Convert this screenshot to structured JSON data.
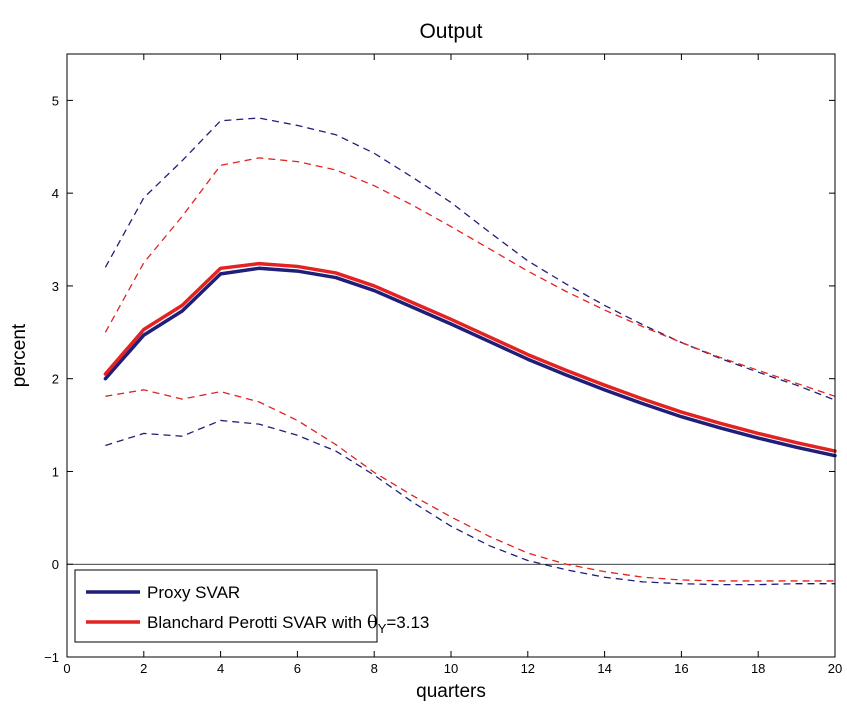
{
  "chart_data": {
    "type": "line",
    "title": "Output",
    "xlabel": "quarters",
    "ylabel": "percent",
    "xlim": [
      0,
      20
    ],
    "ylim": [
      -1,
      5.5
    ],
    "xticks": [
      0,
      2,
      4,
      6,
      8,
      10,
      12,
      14,
      16,
      18,
      20
    ],
    "yticks": [
      -1,
      0,
      1,
      2,
      3,
      4,
      5
    ],
    "grid": false,
    "zero_line": true,
    "legend": {
      "placement": "bottom-left",
      "entries": [
        {
          "series": "proxy_svar",
          "label": "Proxy SVAR"
        },
        {
          "series": "bp_svar",
          "label_prefix": "Blanchard Perotti SVAR with ",
          "theta_symbol": "θ",
          "theta_subscript": "Y",
          "theta_value": "=3.13"
        }
      ]
    },
    "x": [
      1,
      2,
      3,
      4,
      5,
      6,
      7,
      8,
      9,
      10,
      11,
      12,
      13,
      14,
      15,
      16,
      17,
      18,
      19,
      20
    ],
    "series": [
      {
        "id": "proxy_svar",
        "role": "point",
        "color": "#1f1f7a",
        "style": "solid",
        "values": [
          2.0,
          2.47,
          2.73,
          3.13,
          3.19,
          3.16,
          3.09,
          2.95,
          2.77,
          2.59,
          2.4,
          2.21,
          2.04,
          1.88,
          1.73,
          1.59,
          1.47,
          1.36,
          1.26,
          1.17
        ]
      },
      {
        "id": "bp_svar",
        "role": "point",
        "color": "#e32222",
        "style": "solid",
        "values": [
          2.05,
          2.53,
          2.79,
          3.19,
          3.24,
          3.21,
          3.14,
          3.0,
          2.82,
          2.64,
          2.45,
          2.26,
          2.09,
          1.93,
          1.78,
          1.64,
          1.52,
          1.41,
          1.31,
          1.22
        ]
      },
      {
        "id": "proxy_upper",
        "role": "band",
        "color": "#1f1f7a",
        "style": "dashed",
        "values": [
          3.2,
          3.95,
          4.35,
          4.78,
          4.81,
          4.73,
          4.63,
          4.43,
          4.17,
          3.9,
          3.58,
          3.27,
          3.02,
          2.79,
          2.58,
          2.39,
          2.22,
          2.07,
          1.93,
          1.77
        ]
      },
      {
        "id": "proxy_lower",
        "role": "band",
        "color": "#1f1f7a",
        "style": "dashed",
        "values": [
          1.28,
          1.41,
          1.38,
          1.55,
          1.51,
          1.39,
          1.22,
          0.96,
          0.67,
          0.41,
          0.2,
          0.04,
          -0.06,
          -0.14,
          -0.19,
          -0.21,
          -0.22,
          -0.22,
          -0.21,
          -0.21
        ]
      },
      {
        "id": "bp_upper",
        "role": "band",
        "color": "#e32222",
        "style": "dashed",
        "values": [
          2.5,
          3.25,
          3.75,
          4.3,
          4.38,
          4.34,
          4.25,
          4.08,
          3.87,
          3.64,
          3.4,
          3.16,
          2.94,
          2.74,
          2.56,
          2.39,
          2.23,
          2.09,
          1.95,
          1.81
        ]
      },
      {
        "id": "bp_lower",
        "role": "band",
        "color": "#e32222",
        "style": "dashed",
        "values": [
          1.81,
          1.88,
          1.78,
          1.86,
          1.75,
          1.55,
          1.29,
          0.99,
          0.74,
          0.51,
          0.3,
          0.12,
          0.0,
          -0.08,
          -0.14,
          -0.17,
          -0.18,
          -0.18,
          -0.18,
          -0.18
        ]
      }
    ]
  }
}
